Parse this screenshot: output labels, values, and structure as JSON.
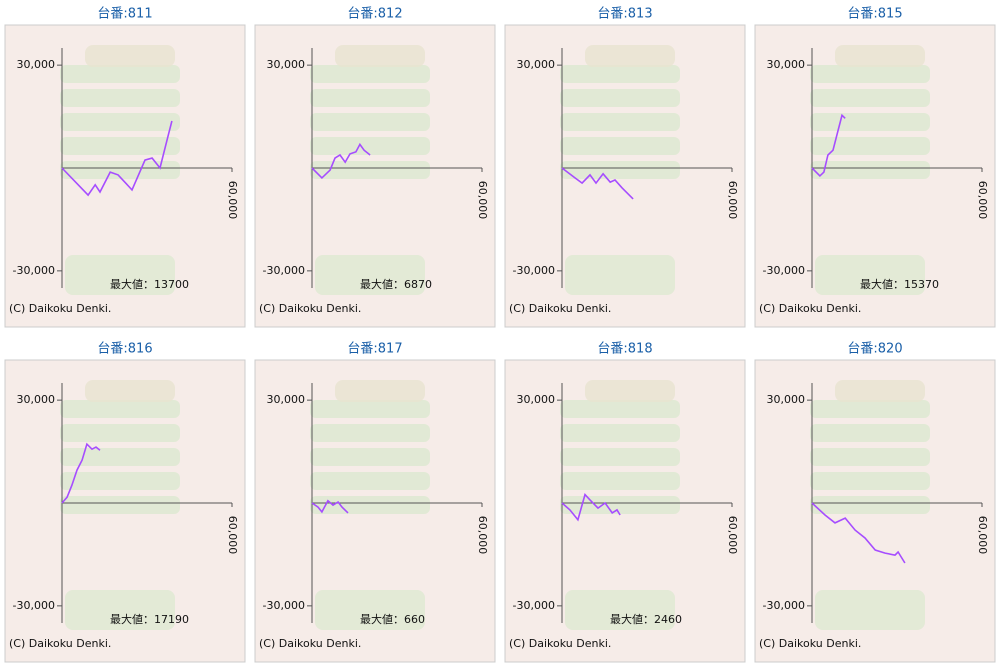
{
  "chart_data": [
    {
      "type": "line",
      "title": "台番:811",
      "x": [
        0,
        9200,
        11700,
        13400,
        17000,
        19800,
        24700,
        29300,
        31800,
        34600,
        37500,
        38800
      ],
      "values": [
        0,
        -7900,
        -4900,
        -7000,
        -1200,
        -2000,
        -6400,
        2300,
        2900,
        0,
        9600,
        13700
      ],
      "color": "#a64dff",
      "xlim": [
        0,
        60000
      ],
      "xticks": [
        {
          "value": 60000,
          "label": "60,000"
        }
      ],
      "ylim": [
        -35000,
        35000
      ],
      "yticks": [
        {
          "value": 30000,
          "label": "30,000"
        },
        {
          "value": -30000,
          "label": "-30,000"
        }
      ],
      "max_label": "最大値：",
      "max_value": 13700,
      "credit": "(C) Daikoku Denki."
    },
    {
      "type": "line",
      "title": "台番:812",
      "x": [
        0,
        3500,
        6400,
        8100,
        9900,
        11700,
        13400,
        15500,
        16900,
        18400,
        20500
      ],
      "values": [
        0,
        -2900,
        -600,
        2900,
        3800,
        1700,
        4100,
        4700,
        6870,
        5200,
        3800
      ],
      "color": "#a64dff",
      "xlim": [
        0,
        60000
      ],
      "xticks": [
        {
          "value": 60000,
          "label": "60,000"
        }
      ],
      "ylim": [
        -35000,
        35000
      ],
      "yticks": [
        {
          "value": 30000,
          "label": "30,000"
        },
        {
          "value": -30000,
          "label": "-30,000"
        }
      ],
      "max_label": "最大値：",
      "max_value": 6870,
      "credit": "(C) Daikoku Denki."
    },
    {
      "type": "line",
      "title": "台番:813",
      "x": [
        0,
        4600,
        7100,
        9900,
        12000,
        14500,
        17000,
        18700,
        21200,
        25100
      ],
      "values": [
        0,
        -2900,
        -4400,
        -2000,
        -4400,
        -1700,
        -4100,
        -3500,
        -5800,
        -9000
      ],
      "color": "#a64dff",
      "xlim": [
        0,
        60000
      ],
      "xticks": [
        {
          "value": 60000,
          "label": "60,000"
        }
      ],
      "ylim": [
        -35000,
        35000
      ],
      "yticks": [
        {
          "value": 30000,
          "label": "30,000"
        },
        {
          "value": -30000,
          "label": "-30,000"
        }
      ],
      "credit": "(C) Daikoku Denki."
    },
    {
      "type": "line",
      "title": "台番:815",
      "x": [
        0,
        2800,
        4200,
        5600,
        7400,
        9200,
        10600,
        11700
      ],
      "values": [
        0,
        -2300,
        -1200,
        3800,
        5200,
        11000,
        15370,
        14500
      ],
      "color": "#a64dff",
      "xlim": [
        0,
        60000
      ],
      "xticks": [
        {
          "value": 60000,
          "label": "60,000"
        }
      ],
      "ylim": [
        -35000,
        35000
      ],
      "yticks": [
        {
          "value": 30000,
          "label": "30,000"
        },
        {
          "value": -30000,
          "label": "-30,000"
        }
      ],
      "max_label": "最大値：",
      "max_value": 15370,
      "credit": "(C) Daikoku Denki."
    },
    {
      "type": "line",
      "title": "台番:816",
      "x": [
        0,
        1800,
        3500,
        5300,
        7100,
        8800,
        10600,
        12000,
        13400
      ],
      "values": [
        0,
        1700,
        5200,
        9600,
        12500,
        17190,
        15700,
        16300,
        15400
      ],
      "color": "#a64dff",
      "xlim": [
        0,
        60000
      ],
      "xticks": [
        {
          "value": 60000,
          "label": "60,000"
        }
      ],
      "ylim": [
        -35000,
        35000
      ],
      "yticks": [
        {
          "value": 30000,
          "label": "30,000"
        },
        {
          "value": -30000,
          "label": "-30,000"
        }
      ],
      "max_label": "最大値：",
      "max_value": 17190,
      "credit": "(C) Daikoku Denki."
    },
    {
      "type": "line",
      "title": "台番:817",
      "x": [
        0,
        2100,
        3500,
        5600,
        7400,
        9200,
        10600,
        12700
      ],
      "values": [
        0,
        -1200,
        -2600,
        660,
        -600,
        300,
        -1200,
        -2900
      ],
      "color": "#a64dff",
      "xlim": [
        0,
        60000
      ],
      "xticks": [
        {
          "value": 60000,
          "label": "60,000"
        }
      ],
      "ylim": [
        -35000,
        35000
      ],
      "yticks": [
        {
          "value": 30000,
          "label": "30,000"
        },
        {
          "value": -30000,
          "label": "-30,000"
        }
      ],
      "max_label": "最大値：",
      "max_value": 660,
      "credit": "(C) Daikoku Denki."
    },
    {
      "type": "line",
      "title": "台番:818",
      "x": [
        0,
        2800,
        5600,
        8100,
        9900,
        12700,
        15200,
        17700,
        19400,
        20500
      ],
      "values": [
        0,
        -2000,
        -4900,
        2460,
        900,
        -1500,
        0,
        -2900,
        -2000,
        -3500
      ],
      "color": "#a64dff",
      "xlim": [
        0,
        60000
      ],
      "xticks": [
        {
          "value": 60000,
          "label": "60,000"
        }
      ],
      "ylim": [
        -35000,
        35000
      ],
      "yticks": [
        {
          "value": 30000,
          "label": "30,000"
        },
        {
          "value": -30000,
          "label": "-30,000"
        }
      ],
      "max_label": "最大値：",
      "max_value": 2460,
      "credit": "(C) Daikoku Denki."
    },
    {
      "type": "line",
      "title": "台番:820",
      "x": [
        0,
        4600,
        8100,
        11700,
        15200,
        18700,
        22300,
        25800,
        29300,
        30400,
        32800
      ],
      "values": [
        0,
        -3500,
        -5800,
        -4400,
        -7900,
        -10200,
        -13700,
        -14600,
        -15200,
        -14300,
        -17500
      ],
      "color": "#a64dff",
      "xlim": [
        0,
        60000
      ],
      "xticks": [
        {
          "value": 60000,
          "label": "60,000"
        }
      ],
      "ylim": [
        -35000,
        35000
      ],
      "yticks": [
        {
          "value": 30000,
          "label": "30,000"
        },
        {
          "value": -30000,
          "label": "-30,000"
        }
      ],
      "credit": "(C) Daikoku Denki."
    }
  ]
}
